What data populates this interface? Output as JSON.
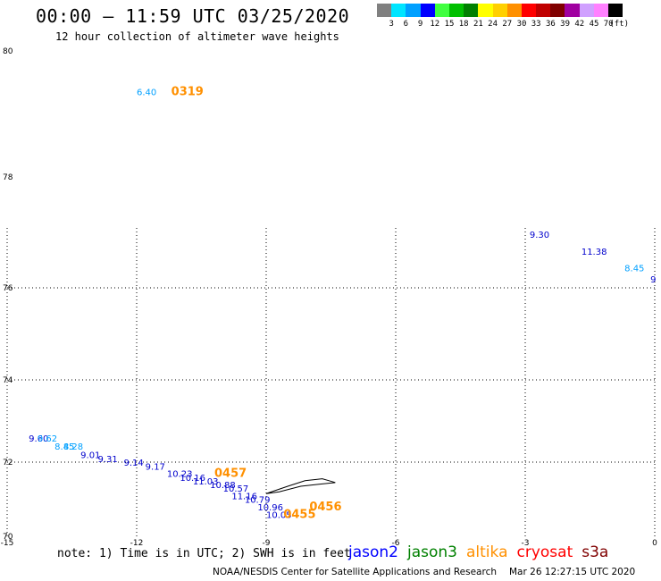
{
  "header": {
    "title": "00:00 – 11:59 UTC 03/25/2020",
    "subtitle": "12 hour collection of altimeter wave heights"
  },
  "legend": {
    "unit": "(ft)",
    "swatches": [
      {
        "color": "#808080",
        "label": "3"
      },
      {
        "color": "#00e5ff",
        "label": "6"
      },
      {
        "color": "#00a0ff",
        "label": "9"
      },
      {
        "color": "#0000ff",
        "label": "12"
      },
      {
        "color": "#40ff40",
        "label": "15"
      },
      {
        "color": "#00c000",
        "label": "18"
      },
      {
        "color": "#008000",
        "label": "21"
      },
      {
        "color": "#ffff00",
        "label": "24"
      },
      {
        "color": "#ffd000",
        "label": "27"
      },
      {
        "color": "#ff9000",
        "label": "30"
      },
      {
        "color": "#ff0000",
        "label": "33"
      },
      {
        "color": "#c00000",
        "label": "36"
      },
      {
        "color": "#800000",
        "label": "39"
      },
      {
        "color": "#a000a0",
        "label": "42"
      },
      {
        "color": "#d0a0ff",
        "label": "45"
      },
      {
        "color": "#ff80ff",
        "label": "70"
      },
      {
        "color": "#000000",
        "label": ""
      }
    ]
  },
  "map": {
    "lon_ticks": [
      "-15",
      "-12",
      "-9",
      "-6",
      "-3",
      "0"
    ],
    "lat_ticks": [
      "70",
      "72",
      "74",
      "76",
      "78",
      "80"
    ],
    "observations": [
      {
        "lon": -12.0,
        "lat": 79.3,
        "text": "6.40",
        "color": "#00a0ff"
      },
      {
        "lon": -11.2,
        "lat": 79.3,
        "text": "0319",
        "color": "#ff9000",
        "time": true
      },
      {
        "lon": -2.9,
        "lat": 76.9,
        "text": "9.30",
        "color": "#0000cc"
      },
      {
        "lon": -1.7,
        "lat": 76.6,
        "text": "11.38",
        "color": "#0000cc"
      },
      {
        "lon": -0.7,
        "lat": 76.3,
        "text": "8.45",
        "color": "#00a0ff"
      },
      {
        "lon": -0.1,
        "lat": 76.1,
        "text": "9",
        "color": "#0000cc"
      },
      {
        "lon": -14.5,
        "lat": 72.5,
        "text": "9.60",
        "color": "#0000cc"
      },
      {
        "lon": -14.3,
        "lat": 72.5,
        "text": "9.62",
        "color": "#00a0ff"
      },
      {
        "lon": -13.9,
        "lat": 72.3,
        "text": "8.45",
        "color": "#00a0ff"
      },
      {
        "lon": -13.7,
        "lat": 72.3,
        "text": "8.28",
        "color": "#00a0ff"
      },
      {
        "lon": -13.3,
        "lat": 72.1,
        "text": "9.01",
        "color": "#0000cc"
      },
      {
        "lon": -12.9,
        "lat": 72.0,
        "text": "9.31",
        "color": "#0000cc"
      },
      {
        "lon": -12.3,
        "lat": 71.9,
        "text": "9.14",
        "color": "#0000cc"
      },
      {
        "lon": -11.8,
        "lat": 71.8,
        "text": "9.17",
        "color": "#0000cc"
      },
      {
        "lon": -11.3,
        "lat": 71.6,
        "text": "10.23",
        "color": "#0000cc"
      },
      {
        "lon": -11.0,
        "lat": 71.5,
        "text": "10.16",
        "color": "#0000cc"
      },
      {
        "lon": -10.7,
        "lat": 71.4,
        "text": "11.03",
        "color": "#0000cc"
      },
      {
        "lon": -10.3,
        "lat": 71.3,
        "text": "10.88",
        "color": "#0000cc"
      },
      {
        "lon": -10.0,
        "lat": 71.2,
        "text": "10.57",
        "color": "#0000cc"
      },
      {
        "lon": -9.8,
        "lat": 71.0,
        "text": "11.16",
        "color": "#0000cc"
      },
      {
        "lon": -9.5,
        "lat": 70.9,
        "text": "10.79",
        "color": "#0000cc"
      },
      {
        "lon": -9.2,
        "lat": 70.7,
        "text": "10.96",
        "color": "#0000cc"
      },
      {
        "lon": -9.0,
        "lat": 70.5,
        "text": "10.05",
        "color": "#0000cc"
      },
      {
        "lon": -10.2,
        "lat": 71.6,
        "text": "0457",
        "color": "#ff9000",
        "time": true
      },
      {
        "lon": -8.0,
        "lat": 70.7,
        "text": "0456",
        "color": "#ff9000",
        "time": true
      },
      {
        "lon": -8.6,
        "lat": 70.5,
        "text": "0455",
        "color": "#ff9000",
        "time": true
      }
    ],
    "island_outline": [
      [
        -9.0,
        71.15
      ],
      [
        -8.5,
        71.35
      ],
      [
        -8.1,
        71.5
      ],
      [
        -7.7,
        71.55
      ],
      [
        -7.4,
        71.45
      ],
      [
        -7.8,
        71.4
      ],
      [
        -8.2,
        71.35
      ],
      [
        -8.7,
        71.2
      ],
      [
        -9.0,
        71.15
      ]
    ]
  },
  "note": "note: 1) Time is in UTC; 2) SWH is in feet",
  "satellites": [
    {
      "name": "jason2",
      "color": "#0000ff"
    },
    {
      "name": "jason3",
      "color": "#008000"
    },
    {
      "name": "altika",
      "color": "#ff9000"
    },
    {
      "name": "cryosat",
      "color": "#ff0000"
    },
    {
      "name": "s3a",
      "color": "#800000"
    }
  ],
  "footer": {
    "credit": "NOAA/NESDIS Center for Satellite Applications and Research",
    "timestamp": "Mar 26 12:27:15 UTC 2020"
  }
}
